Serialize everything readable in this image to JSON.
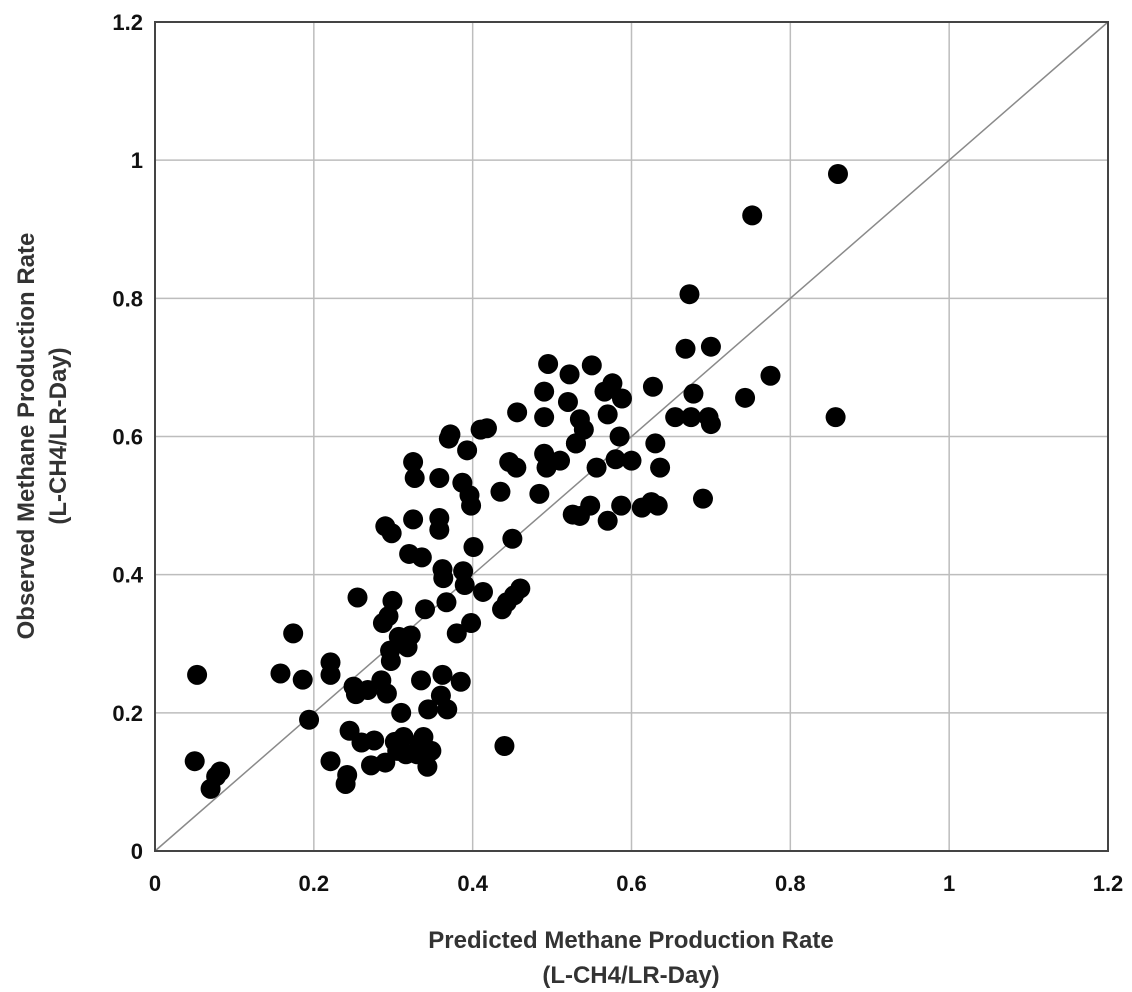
{
  "chart_data": {
    "type": "scatter",
    "xlabel": "Predicted Methane Production Rate",
    "xlabel_units": "(L-CH4/LR-Day)",
    "ylabel": "Observed Methane Production Rate",
    "ylabel_units": "(L-CH4/LR-Day)",
    "xlim": [
      0,
      1.2
    ],
    "ylim": [
      0,
      1.2
    ],
    "x_ticks": [
      "0",
      "0.2",
      "0.4",
      "0.6",
      "0.8",
      "1",
      "1.2"
    ],
    "y_ticks": [
      "0",
      "0.2",
      "0.4",
      "0.6",
      "0.8",
      "1",
      "1.2"
    ],
    "grid": true,
    "reference_line": "y = x",
    "points": [
      [
        0.05,
        0.13
      ],
      [
        0.053,
        0.255
      ],
      [
        0.07,
        0.09
      ],
      [
        0.077,
        0.108
      ],
      [
        0.082,
        0.115
      ],
      [
        0.158,
        0.257
      ],
      [
        0.174,
        0.315
      ],
      [
        0.186,
        0.248
      ],
      [
        0.194,
        0.19
      ],
      [
        0.221,
        0.273
      ],
      [
        0.221,
        0.255
      ],
      [
        0.221,
        0.13
      ],
      [
        0.24,
        0.097
      ],
      [
        0.242,
        0.11
      ],
      [
        0.245,
        0.174
      ],
      [
        0.25,
        0.238
      ],
      [
        0.253,
        0.227
      ],
      [
        0.255,
        0.367
      ],
      [
        0.26,
        0.157
      ],
      [
        0.268,
        0.233
      ],
      [
        0.272,
        0.124
      ],
      [
        0.276,
        0.16
      ],
      [
        0.285,
        0.247
      ],
      [
        0.287,
        0.33
      ],
      [
        0.29,
        0.128
      ],
      [
        0.292,
        0.228
      ],
      [
        0.29,
        0.47
      ],
      [
        0.294,
        0.34
      ],
      [
        0.296,
        0.29
      ],
      [
        0.297,
        0.275
      ],
      [
        0.298,
        0.46
      ],
      [
        0.299,
        0.362
      ],
      [
        0.302,
        0.158
      ],
      [
        0.305,
        0.145
      ],
      [
        0.307,
        0.31
      ],
      [
        0.31,
        0.2
      ],
      [
        0.313,
        0.165
      ],
      [
        0.316,
        0.14
      ],
      [
        0.318,
        0.295
      ],
      [
        0.32,
        0.43
      ],
      [
        0.322,
        0.312
      ],
      [
        0.325,
        0.48
      ],
      [
        0.325,
        0.563
      ],
      [
        0.327,
        0.54
      ],
      [
        0.33,
        0.14
      ],
      [
        0.333,
        0.155
      ],
      [
        0.335,
        0.247
      ],
      [
        0.336,
        0.425
      ],
      [
        0.338,
        0.165
      ],
      [
        0.34,
        0.35
      ],
      [
        0.343,
        0.122
      ],
      [
        0.344,
        0.205
      ],
      [
        0.348,
        0.145
      ],
      [
        0.358,
        0.54
      ],
      [
        0.358,
        0.482
      ],
      [
        0.358,
        0.465
      ],
      [
        0.36,
        0.225
      ],
      [
        0.362,
        0.255
      ],
      [
        0.362,
        0.408
      ],
      [
        0.363,
        0.395
      ],
      [
        0.367,
        0.36
      ],
      [
        0.368,
        0.205
      ],
      [
        0.37,
        0.597
      ],
      [
        0.372,
        0.603
      ],
      [
        0.38,
        0.315
      ],
      [
        0.385,
        0.245
      ],
      [
        0.387,
        0.533
      ],
      [
        0.388,
        0.405
      ],
      [
        0.39,
        0.385
      ],
      [
        0.393,
        0.58
      ],
      [
        0.396,
        0.515
      ],
      [
        0.398,
        0.5
      ],
      [
        0.398,
        0.33
      ],
      [
        0.401,
        0.44
      ],
      [
        0.41,
        0.61
      ],
      [
        0.413,
        0.375
      ],
      [
        0.418,
        0.612
      ],
      [
        0.435,
        0.52
      ],
      [
        0.437,
        0.35
      ],
      [
        0.44,
        0.152
      ],
      [
        0.443,
        0.36
      ],
      [
        0.446,
        0.563
      ],
      [
        0.45,
        0.452
      ],
      [
        0.452,
        0.37
      ],
      [
        0.455,
        0.555
      ],
      [
        0.456,
        0.635
      ],
      [
        0.46,
        0.38
      ],
      [
        0.484,
        0.517
      ],
      [
        0.49,
        0.665
      ],
      [
        0.49,
        0.628
      ],
      [
        0.49,
        0.575
      ],
      [
        0.493,
        0.555
      ],
      [
        0.495,
        0.705
      ],
      [
        0.51,
        0.565
      ],
      [
        0.52,
        0.65
      ],
      [
        0.522,
        0.69
      ],
      [
        0.526,
        0.487
      ],
      [
        0.53,
        0.59
      ],
      [
        0.53,
        0.59
      ],
      [
        0.535,
        0.625
      ],
      [
        0.535,
        0.485
      ],
      [
        0.54,
        0.61
      ],
      [
        0.548,
        0.5
      ],
      [
        0.55,
        0.703
      ],
      [
        0.556,
        0.555
      ],
      [
        0.566,
        0.665
      ],
      [
        0.57,
        0.478
      ],
      [
        0.57,
        0.632
      ],
      [
        0.576,
        0.677
      ],
      [
        0.58,
        0.567
      ],
      [
        0.585,
        0.6
      ],
      [
        0.587,
        0.5
      ],
      [
        0.588,
        0.655
      ],
      [
        0.6,
        0.565
      ],
      [
        0.613,
        0.497
      ],
      [
        0.625,
        0.505
      ],
      [
        0.627,
        0.672
      ],
      [
        0.63,
        0.59
      ],
      [
        0.633,
        0.5
      ],
      [
        0.636,
        0.555
      ],
      [
        0.655,
        0.628
      ],
      [
        0.668,
        0.727
      ],
      [
        0.673,
        0.806
      ],
      [
        0.675,
        0.628
      ],
      [
        0.678,
        0.662
      ],
      [
        0.69,
        0.51
      ],
      [
        0.697,
        0.628
      ],
      [
        0.7,
        0.73
      ],
      [
        0.7,
        0.618
      ],
      [
        0.743,
        0.656
      ],
      [
        0.752,
        0.92
      ],
      [
        0.775,
        0.688
      ],
      [
        0.857,
        0.628
      ],
      [
        0.86,
        0.98
      ]
    ]
  }
}
